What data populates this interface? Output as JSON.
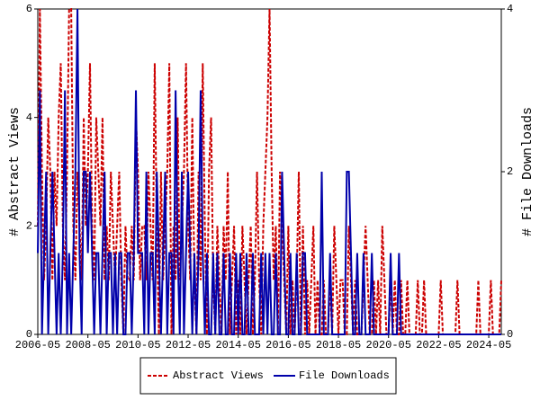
{
  "chart_data": {
    "type": "line",
    "x": [
      "2006-05",
      "2006-06",
      "2006-07",
      "2006-08",
      "2006-09",
      "2006-10",
      "2006-11",
      "2006-12",
      "2007-01",
      "2007-02",
      "2007-03",
      "2007-04",
      "2007-05",
      "2007-06",
      "2007-07",
      "2007-08",
      "2007-09",
      "2007-10",
      "2007-11",
      "2007-12",
      "2008-01",
      "2008-02",
      "2008-03",
      "2008-04",
      "2008-05",
      "2008-06",
      "2008-07",
      "2008-08",
      "2008-09",
      "2008-10",
      "2008-11",
      "2008-12",
      "2009-01",
      "2009-02",
      "2009-03",
      "2009-04",
      "2009-05",
      "2009-06",
      "2009-07",
      "2009-08",
      "2009-09",
      "2009-10",
      "2009-11",
      "2009-12",
      "2010-01",
      "2010-02",
      "2010-03",
      "2010-04",
      "2010-05",
      "2010-06",
      "2010-07",
      "2010-08",
      "2010-09",
      "2010-10",
      "2010-11",
      "2010-12",
      "2011-01",
      "2011-02",
      "2011-03",
      "2011-04",
      "2011-05",
      "2011-06",
      "2011-07",
      "2011-08",
      "2011-09",
      "2011-10",
      "2011-11",
      "2011-12",
      "2012-01",
      "2012-02",
      "2012-03",
      "2012-04",
      "2012-05",
      "2012-06",
      "2012-07",
      "2012-08",
      "2012-09",
      "2012-10",
      "2012-11",
      "2012-12",
      "2013-01",
      "2013-02",
      "2013-03",
      "2013-04",
      "2013-05",
      "2013-06",
      "2013-07",
      "2013-08",
      "2013-09",
      "2013-10",
      "2013-11",
      "2013-12",
      "2014-01",
      "2014-02",
      "2014-03",
      "2014-04",
      "2014-05",
      "2014-06",
      "2014-07",
      "2014-08",
      "2014-09",
      "2014-10",
      "2014-11",
      "2014-12",
      "2015-01",
      "2015-02",
      "2015-03",
      "2015-04",
      "2015-05",
      "2015-06",
      "2015-07",
      "2015-08",
      "2015-09",
      "2015-10",
      "2015-11",
      "2015-12",
      "2016-01",
      "2016-02",
      "2016-03",
      "2016-04",
      "2016-05",
      "2016-06",
      "2016-07",
      "2016-08",
      "2016-09",
      "2016-10",
      "2016-11",
      "2016-12",
      "2017-01",
      "2017-02",
      "2017-03",
      "2017-04",
      "2017-05",
      "2017-06",
      "2017-07",
      "2017-08",
      "2017-09",
      "2017-10",
      "2017-11",
      "2017-12",
      "2018-01",
      "2018-02",
      "2018-03",
      "2018-04",
      "2018-05",
      "2018-06",
      "2018-07",
      "2018-08",
      "2018-09",
      "2018-10",
      "2018-11",
      "2018-12",
      "2019-01",
      "2019-02",
      "2019-03",
      "2019-04",
      "2019-05",
      "2019-06",
      "2019-07",
      "2019-08",
      "2019-09",
      "2019-10",
      "2019-11",
      "2019-12",
      "2020-01",
      "2020-02",
      "2020-03",
      "2020-04",
      "2020-05",
      "2020-06",
      "2020-07",
      "2020-08",
      "2020-09",
      "2020-10",
      "2020-11",
      "2020-12",
      "2021-01",
      "2021-02",
      "2021-03",
      "2021-04",
      "2021-05",
      "2021-06",
      "2021-07",
      "2021-08",
      "2021-09",
      "2021-10",
      "2021-11",
      "2021-12",
      "2022-01",
      "2022-02",
      "2022-03",
      "2022-04",
      "2022-05",
      "2022-06",
      "2022-07",
      "2022-08",
      "2022-09",
      "2022-10",
      "2022-11",
      "2022-12",
      "2023-01",
      "2023-02",
      "2023-03",
      "2023-04",
      "2023-05",
      "2023-06",
      "2023-07",
      "2023-08",
      "2023-09",
      "2023-10",
      "2023-11",
      "2023-12",
      "2024-01",
      "2024-02",
      "2024-03",
      "2024-04",
      "2024-05",
      "2024-06",
      "2024-07",
      "2024-08",
      "2024-09",
      "2024-10",
      "2024-11"
    ],
    "xticks": [
      "2006-05",
      "2008-05",
      "2010-05",
      "2012-05",
      "2014-05",
      "2016-05",
      "2018-05",
      "2020-05",
      "2022-05",
      "2024-05"
    ],
    "ylabel": "# Abstract Views",
    "y2label": "# File Downloads",
    "ylim": [
      0,
      6
    ],
    "yticks": [
      0,
      2,
      4,
      6
    ],
    "y2lim": [
      0,
      4
    ],
    "y2ticks": [
      0,
      2,
      4
    ],
    "series": [
      {
        "name": "Abstract Views",
        "color": "#cc0000",
        "dash": true,
        "values": [
          2,
          6,
          3,
          1,
          2,
          4,
          3,
          1,
          3,
          2,
          4,
          5,
          2,
          1,
          3,
          6,
          6,
          2,
          1,
          3,
          2,
          1,
          4,
          2,
          3,
          5,
          2,
          1,
          4,
          3,
          2,
          4,
          1,
          2,
          1,
          3,
          2,
          1,
          2,
          3,
          1,
          0,
          2,
          1,
          1,
          2,
          1,
          4,
          3,
          1,
          2,
          2,
          1,
          3,
          2,
          1,
          5,
          2,
          0,
          3,
          1,
          2,
          3,
          5,
          0,
          2,
          1,
          4,
          1,
          2,
          3,
          5,
          2,
          1,
          4,
          1,
          0,
          3,
          1,
          5,
          2,
          0,
          3,
          4,
          1,
          0,
          2,
          1,
          0,
          2,
          1,
          3,
          0,
          1,
          2,
          0,
          1,
          0,
          2,
          1,
          0,
          1,
          2,
          0,
          1,
          3,
          1,
          0,
          2,
          3,
          4,
          6,
          3,
          1,
          2,
          0,
          3,
          2,
          1,
          0,
          2,
          0,
          1,
          0,
          1,
          3,
          0,
          2,
          0,
          1,
          0,
          1,
          2,
          0,
          1,
          0,
          0,
          1,
          0,
          0,
          1,
          0,
          2,
          1,
          0,
          1,
          1,
          0,
          0,
          2,
          1,
          0,
          1,
          0,
          0,
          0,
          1,
          2,
          1,
          0,
          0,
          1,
          0,
          1,
          0,
          2,
          1,
          0,
          0,
          1,
          0,
          1,
          0,
          0,
          1,
          0,
          0,
          1,
          0,
          0,
          0,
          0,
          1,
          0,
          0,
          1,
          0,
          0,
          0,
          0,
          0,
          0,
          0,
          1,
          0,
          0,
          0,
          0,
          0,
          0,
          0,
          1,
          0,
          0,
          0,
          0,
          0,
          0,
          0,
          0,
          0,
          1,
          0,
          0,
          0,
          0,
          0,
          1,
          0,
          0,
          0,
          0,
          1
        ]
      },
      {
        "name": "File Downloads",
        "color": "#0000aa",
        "dash": false,
        "axis": "y2",
        "values": [
          1,
          3,
          0,
          1,
          2,
          0,
          1,
          2,
          1,
          0,
          1,
          0,
          1,
          3,
          0,
          1,
          0,
          1,
          2,
          4,
          1,
          0,
          2,
          2,
          1,
          2,
          1,
          0,
          1,
          1,
          0,
          1,
          2,
          0,
          1,
          1,
          0,
          1,
          0,
          1,
          1,
          0,
          0,
          1,
          1,
          0,
          1,
          3,
          1,
          1,
          1,
          0,
          2,
          0,
          1,
          1,
          0,
          2,
          1,
          0,
          1,
          2,
          0,
          1,
          1,
          0,
          3,
          1,
          0,
          2,
          0,
          1,
          2,
          1,
          0,
          1,
          0,
          1,
          3,
          1,
          0,
          1,
          0,
          0,
          1,
          0,
          1,
          0,
          0,
          1,
          0,
          0,
          1,
          0,
          0,
          1,
          0,
          1,
          0,
          0,
          1,
          0,
          0,
          1,
          0,
          0,
          0,
          1,
          0,
          1,
          0,
          1,
          0,
          0,
          1,
          0,
          0,
          2,
          1,
          0,
          0,
          1,
          0,
          0,
          1,
          0,
          0,
          1,
          1,
          0,
          0,
          0,
          0,
          0,
          0,
          0,
          2,
          0,
          0,
          0,
          1,
          0,
          0,
          0,
          0,
          0,
          0,
          0,
          2,
          2,
          1,
          0,
          0,
          1,
          0,
          0,
          1,
          0,
          0,
          0,
          1,
          0,
          0,
          0,
          0,
          0,
          0,
          0,
          0,
          1,
          0,
          0,
          0,
          1,
          0,
          0,
          0,
          0,
          0,
          0,
          0,
          0,
          0,
          0,
          0,
          0,
          0,
          0,
          0,
          0,
          0,
          0,
          0,
          0,
          0,
          0,
          0,
          0,
          0,
          0,
          0,
          0,
          0,
          0,
          0,
          0,
          0,
          0,
          0,
          0,
          0,
          0,
          0,
          0,
          0,
          0,
          0,
          0,
          0,
          0,
          0,
          0,
          0
        ]
      }
    ]
  }
}
